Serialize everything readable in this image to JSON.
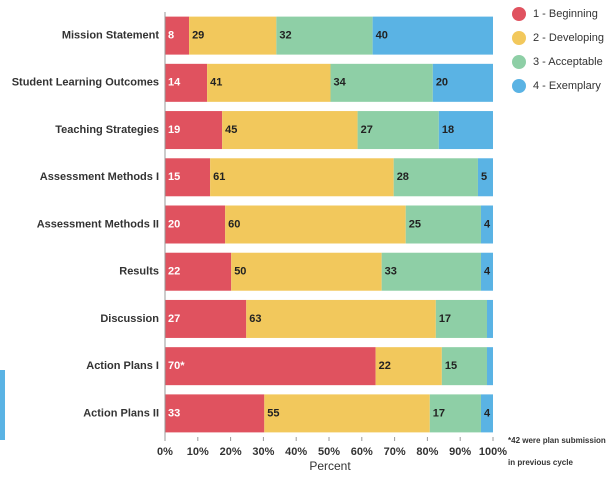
{
  "chart_data": {
    "type": "bar",
    "stack": "percent",
    "orientation": "horizontal",
    "x_label": "Percent",
    "footnote": "*42 were plan submission in previous cycle",
    "categories": [
      "Mission Statement",
      "Student Learning Outcomes",
      "Teaching Strategies",
      "Assessment Methods I",
      "Assessment Methods II",
      "Results",
      "Discussion",
      "Action Plans I",
      "Action Plans II"
    ],
    "series": [
      {
        "name": "1 - Beginning",
        "color": "#e0525f",
        "values": [
          8,
          14,
          19,
          15,
          20,
          22,
          27,
          70,
          33
        ],
        "value_labels": [
          "8",
          "14",
          "19",
          "15",
          "20",
          "22",
          "27",
          "70*",
          "33"
        ]
      },
      {
        "name": "2 - Developing",
        "color": "#f2c85c",
        "values": [
          29,
          41,
          45,
          61,
          60,
          50,
          63,
          22,
          55
        ]
      },
      {
        "name": "3 - Acceptable",
        "color": "#8ecfa6",
        "values": [
          32,
          34,
          27,
          28,
          25,
          33,
          17,
          15,
          17
        ]
      },
      {
        "name": "4 - Exemplary",
        "color": "#5ab3e4",
        "values": [
          40,
          20,
          18,
          5,
          4,
          4,
          2,
          2,
          4
        ],
        "value_labels": [
          "40",
          "20",
          "18",
          "5",
          "4",
          "4",
          null,
          null,
          "4"
        ]
      }
    ],
    "xlim": [
      0,
      100
    ],
    "xticks": [
      {
        "value": 0,
        "label": "0%"
      },
      {
        "value": 10,
        "label": "10%"
      },
      {
        "value": 20,
        "label": "20%"
      },
      {
        "value": 30,
        "label": "30%"
      },
      {
        "value": 40,
        "label": "40%"
      },
      {
        "value": 50,
        "label": "50%"
      },
      {
        "value": 60,
        "label": "60%"
      },
      {
        "value": 70,
        "label": "70%"
      },
      {
        "value": 80,
        "label": "80%"
      },
      {
        "value": 90,
        "label": "90%"
      },
      {
        "value": 100,
        "label": "100%"
      }
    ],
    "legend": "top-right"
  }
}
